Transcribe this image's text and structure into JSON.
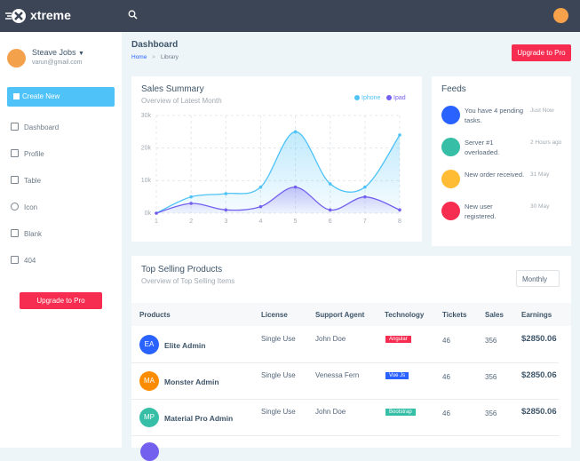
{
  "topbar": {
    "brand": "xtreme"
  },
  "sidebar": {
    "user_name": "Steave Jobs",
    "user_email": "varun@gmail.com",
    "create_button": "Create New",
    "menu": [
      "Dashboard",
      "Profile",
      "Table",
      "Icon",
      "Blank",
      "404"
    ],
    "upgrade_button": "Upgrade to Pro"
  },
  "header": {
    "title": "Dashboard",
    "breadcrumb": [
      "Home",
      "Library"
    ],
    "upgrade_button": "Upgrade to Pro"
  },
  "chart_data": {
    "type": "line",
    "title": "Sales Summary",
    "subtitle": "Overview of Latest Month",
    "x": [
      1,
      2,
      3,
      4,
      5,
      6,
      7,
      8
    ],
    "xlim": [
      1,
      8
    ],
    "xticks": [
      1,
      2,
      3,
      4,
      5,
      6,
      7,
      8
    ],
    "ylim": [
      0,
      30000
    ],
    "yticks": [
      {
        "value": 0,
        "label": "0k"
      },
      {
        "value": 10000,
        "label": "10k"
      },
      {
        "value": 20000,
        "label": "20k"
      },
      {
        "value": 30000,
        "label": "30k"
      }
    ],
    "grid": true,
    "legend": "top-right",
    "series": [
      {
        "name": "Iphone",
        "color": "#4fc3f7",
        "values": [
          0,
          5000,
          6000,
          8000,
          25000,
          9000,
          8000,
          24000
        ]
      },
      {
        "name": "Ipad",
        "color": "#7460ee",
        "values": [
          0,
          3000,
          1000,
          2000,
          8000,
          1000,
          5000,
          1000
        ]
      }
    ]
  },
  "feeds": {
    "title": "Feeds",
    "items": [
      {
        "text": "You have 4 pending tasks.",
        "time": "Just Now"
      },
      {
        "text": "Server #1 overloaded.",
        "time": "2 Hours ago"
      },
      {
        "text": "New order received.",
        "time": "31 May"
      },
      {
        "text": "New user registered.",
        "time": "30 May"
      }
    ]
  },
  "products": {
    "title": "Top Selling Products",
    "subtitle": "Overview of Top Selling Items",
    "filter": "Monthly",
    "columns": [
      "Products",
      "License",
      "Support Agent",
      "Technology",
      "Tickets",
      "Sales",
      "Earnings"
    ],
    "rows": [
      {
        "initials": "EA",
        "name": "Elite Admin",
        "license": "Single Use",
        "agent": "John Doe",
        "technology": "Angular",
        "tickets": 46,
        "sales": 356,
        "earnings": "$2850.06"
      },
      {
        "initials": "MA",
        "name": "Monster Admin",
        "license": "Single Use",
        "agent": "Venessa Fern",
        "technology": "Vue Js",
        "tickets": 46,
        "sales": 356,
        "earnings": "$2850.06"
      },
      {
        "initials": "MP",
        "name": "Material Pro Admin",
        "license": "Single Use",
        "agent": "John Doe",
        "technology": "Bootstrap",
        "tickets": 46,
        "sales": 356,
        "earnings": "$2850.06"
      }
    ]
  }
}
